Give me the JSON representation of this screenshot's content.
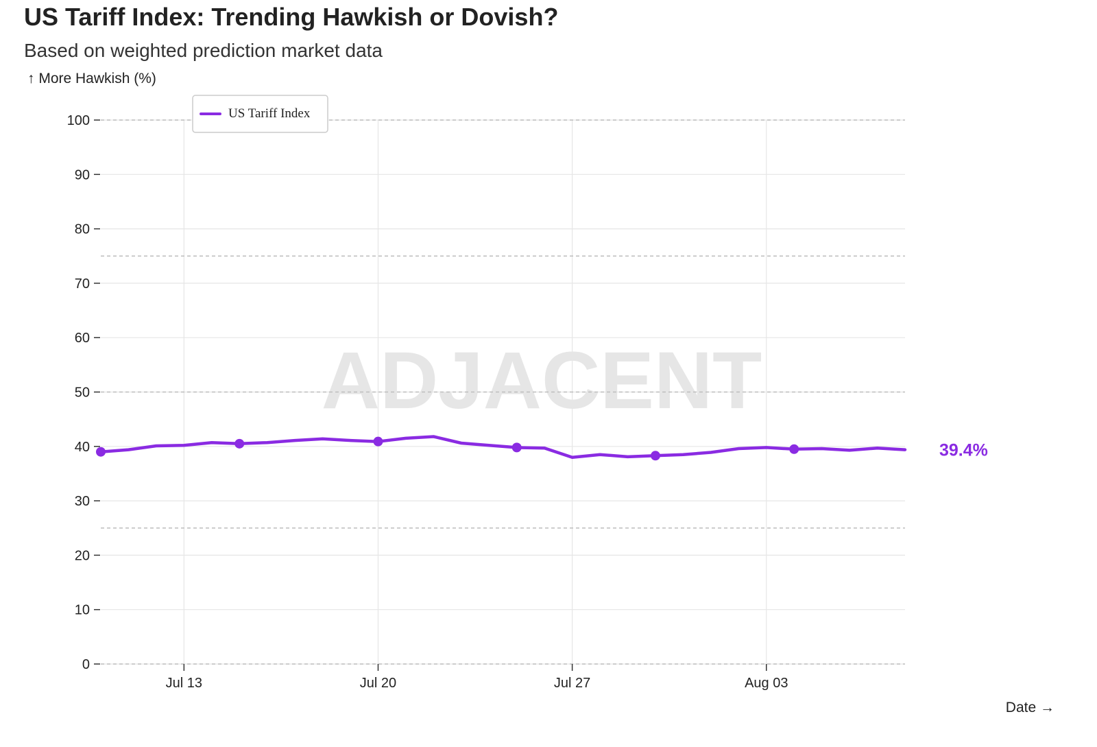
{
  "title": "US Tariff Index: Trending Hawkish or Dovish?",
  "subtitle": "Based on weighted prediction market data",
  "watermark": "ADJACENT",
  "chart_data": {
    "type": "line",
    "ylabel": "↑ More Hawkish (%)",
    "xlabel": "Date →",
    "ylim": [
      0,
      100
    ],
    "yticks": [
      0,
      10,
      20,
      30,
      40,
      50,
      60,
      70,
      80,
      90,
      100
    ],
    "xlim": [
      "2025-07-10",
      "2025-08-08"
    ],
    "xticks": [
      {
        "date": "2025-07-13",
        "label": "Jul 13"
      },
      {
        "date": "2025-07-20",
        "label": "Jul 20"
      },
      {
        "date": "2025-07-27",
        "label": "Jul 27"
      },
      {
        "date": "2025-08-03",
        "label": "Aug 03"
      }
    ],
    "grid": true,
    "reference_lines": [
      25,
      50,
      75,
      100
    ],
    "legend": {
      "position": "top-left"
    },
    "series": [
      {
        "name": "US Tariff Index",
        "color": "#8a2be2",
        "last_value_label": "39.4%",
        "points": [
          {
            "x": "2025-07-10",
            "y": 39.0,
            "marker": true
          },
          {
            "x": "2025-07-11",
            "y": 39.4
          },
          {
            "x": "2025-07-12",
            "y": 40.1
          },
          {
            "x": "2025-07-13",
            "y": 40.2
          },
          {
            "x": "2025-07-14",
            "y": 40.7
          },
          {
            "x": "2025-07-15",
            "y": 40.5,
            "marker": true
          },
          {
            "x": "2025-07-16",
            "y": 40.7
          },
          {
            "x": "2025-07-17",
            "y": 41.1
          },
          {
            "x": "2025-07-18",
            "y": 41.4
          },
          {
            "x": "2025-07-19",
            "y": 41.1
          },
          {
            "x": "2025-07-20",
            "y": 40.9,
            "marker": true
          },
          {
            "x": "2025-07-21",
            "y": 41.5
          },
          {
            "x": "2025-07-22",
            "y": 41.8
          },
          {
            "x": "2025-07-23",
            "y": 40.6
          },
          {
            "x": "2025-07-24",
            "y": 40.2
          },
          {
            "x": "2025-07-25",
            "y": 39.8,
            "marker": true
          },
          {
            "x": "2025-07-26",
            "y": 39.7
          },
          {
            "x": "2025-07-27",
            "y": 38.0
          },
          {
            "x": "2025-07-28",
            "y": 38.5
          },
          {
            "x": "2025-07-29",
            "y": 38.1
          },
          {
            "x": "2025-07-30",
            "y": 38.3,
            "marker": true
          },
          {
            "x": "2025-07-31",
            "y": 38.5
          },
          {
            "x": "2025-08-01",
            "y": 38.9
          },
          {
            "x": "2025-08-02",
            "y": 39.6
          },
          {
            "x": "2025-08-03",
            "y": 39.8
          },
          {
            "x": "2025-08-04",
            "y": 39.5,
            "marker": true
          },
          {
            "x": "2025-08-05",
            "y": 39.6
          },
          {
            "x": "2025-08-06",
            "y": 39.3
          },
          {
            "x": "2025-08-07",
            "y": 39.7
          },
          {
            "x": "2025-08-08",
            "y": 39.4
          }
        ]
      }
    ]
  }
}
